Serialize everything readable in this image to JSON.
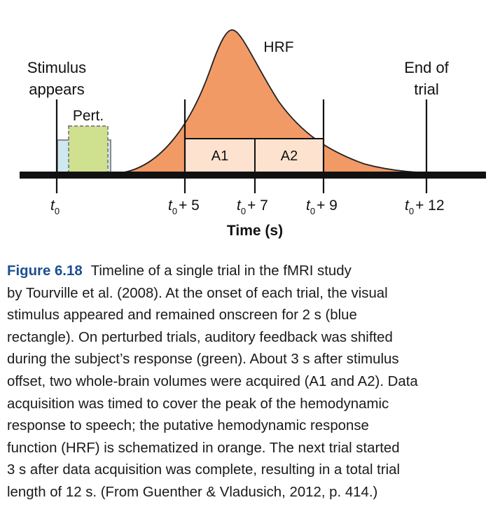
{
  "figure": {
    "labels": {
      "stimulus_line1": "Stimulus",
      "stimulus_line2": "appears",
      "end_line1": "End of",
      "end_line2": "trial",
      "pert": "Pert.",
      "hrf": "HRF",
      "a1": "A1",
      "a2": "A2",
      "time_axis": "Time (s)"
    },
    "ticks": [
      {
        "sub": "0",
        "rest": ""
      },
      {
        "sub": "0",
        "rest": "+ 5"
      },
      {
        "sub": "0",
        "rest": "+ 7"
      },
      {
        "sub": "0",
        "rest": "+ 9"
      },
      {
        "sub": "0",
        "rest": "+ 12"
      }
    ],
    "colors": {
      "hrf_fill": "#f29a66",
      "acq_fill": "#fde3cf",
      "stim_fill": "#cfe8f0",
      "pert_fill": "#cfe08f",
      "axis": "#111111"
    }
  },
  "caption": {
    "figure_number": "Figure 6.18",
    "lines": [
      "Timeline of a single trial in the fMRI study",
      "by Tourville et al. (2008). At the onset of each trial, the visual",
      "stimulus appeared and remained onscreen for 2 s (blue",
      "rectangle). On perturbed trials, auditory feedback was shifted",
      "during the subject’s response (green). About 3 s after stimulus",
      "offset, two whole-brain volumes were acquired (A1 and A2). Data",
      "acquisition was timed to cover the peak of the hemodynamic",
      "response to speech; the putative hemodynamic response",
      "function (HRF) is schematized in orange. The next trial started",
      "3 s after data acquisition was complete, resulting in a total trial",
      "length of 12 s. (From Guenther & Vladusich, 2012, p. 414.)"
    ]
  }
}
